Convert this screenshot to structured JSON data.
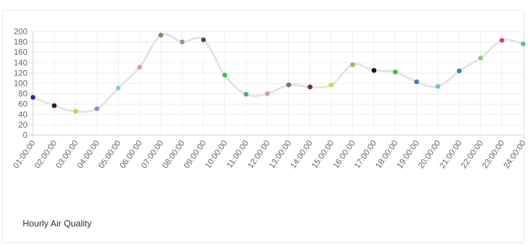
{
  "caption": "Hourly Air Quality",
  "chart_data": {
    "type": "line",
    "title": "",
    "xlabel": "",
    "ylabel": "",
    "ylim": [
      0,
      200
    ],
    "yticks": [
      0,
      20,
      40,
      60,
      80,
      100,
      120,
      140,
      160,
      180,
      200
    ],
    "grid": true,
    "line_color": "#e3e3e3",
    "categories": [
      "01:00:00",
      "02:00:00",
      "03:00:00",
      "04:00:00",
      "05:00:00",
      "06:00:00",
      "07:00:00",
      "08:00:00",
      "09:00:00",
      "10:00:00",
      "11:00:00",
      "12:00:00",
      "13:00:00",
      "14:00:00",
      "15:00:00",
      "16:00:00",
      "17:00:00",
      "18:00:00",
      "19:00:00",
      "20:00:00",
      "21:00:00",
      "22:00:00",
      "23:00:00",
      "24:00:00"
    ],
    "series": [
      {
        "values": [
          73,
          57,
          46,
          51,
          91,
          131,
          193,
          180,
          184,
          116,
          79,
          80,
          97,
          93,
          97,
          136,
          125,
          122,
          103,
          94,
          124,
          149,
          183,
          176
        ],
        "point_colors": [
          "#2b2ba3",
          "#4a1020",
          "#b8d86c",
          "#8d8ddb",
          "#7fd1e6",
          "#d79aa9",
          "#7c8a5a",
          "#8c9a9a",
          "#315a52",
          "#27d42b",
          "#5fa58d",
          "#d1a3ad",
          "#5b7f7a",
          "#6a3048",
          "#c6dc5a",
          "#a7b356",
          "#151515",
          "#2fbd55",
          "#4c74b6",
          "#5fc8d6",
          "#3e7fb2",
          "#84d36b",
          "#c9466a",
          "#5cc4a2"
        ]
      }
    ]
  }
}
